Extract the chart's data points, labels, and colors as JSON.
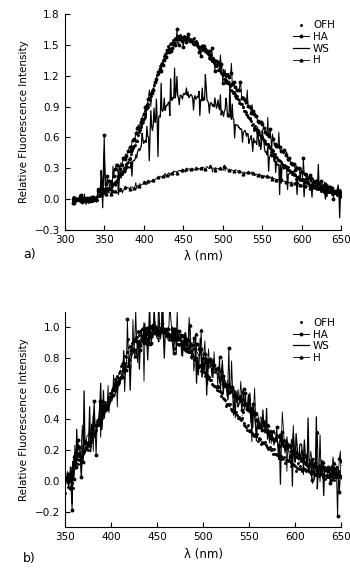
{
  "panel_a": {
    "xlim": [
      300,
      650
    ],
    "ylim": [
      -0.3,
      1.8
    ],
    "xticks": [
      300,
      350,
      400,
      450,
      500,
      550,
      600,
      650
    ],
    "yticks": [
      -0.3,
      0.0,
      0.3,
      0.6,
      0.9,
      1.2,
      1.5,
      1.8
    ],
    "xlabel": "λ (nm)",
    "ylabel": "Relative Fluorescence Intensity",
    "label": "a)",
    "legend_entries": [
      "HA",
      "OFH",
      "WS",
      "H"
    ]
  },
  "panel_b": {
    "xlim": [
      350,
      650
    ],
    "ylim": [
      -0.3,
      1.1
    ],
    "xticks": [
      350,
      400,
      450,
      500,
      550,
      600,
      650
    ],
    "yticks": [
      -0.2,
      0.0,
      0.2,
      0.4,
      0.6,
      0.8,
      1.0
    ],
    "xlabel": "λ (nm)",
    "ylabel": "Relative Fluorescence Intensity",
    "label": "b)",
    "legend_entries": [
      "HA",
      "OFH",
      "WS",
      "H"
    ]
  },
  "line_color": "#000000",
  "figsize": [
    3.5,
    5.7
  ],
  "dpi": 100
}
